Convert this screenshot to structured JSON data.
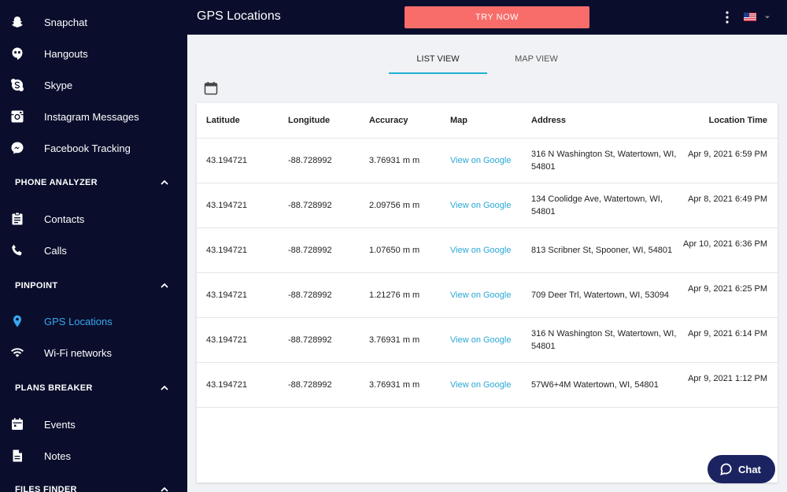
{
  "sidebar": {
    "top_items": [
      {
        "label": "Snapchat",
        "icon": "snapchat-icon"
      },
      {
        "label": "Hangouts",
        "icon": "hangouts-icon"
      },
      {
        "label": "Skype",
        "icon": "skype-icon"
      },
      {
        "label": "Instagram Messages",
        "icon": "instagram-icon"
      },
      {
        "label": "Facebook Tracking",
        "icon": "messenger-icon"
      }
    ],
    "phone_analyzer": {
      "title": "PHONE ANALYZER",
      "items": [
        {
          "label": "Contacts",
          "icon": "contacts-icon"
        },
        {
          "label": "Calls",
          "icon": "phone-icon"
        }
      ]
    },
    "pinpoint": {
      "title": "PINPOINT",
      "items": [
        {
          "label": "GPS Locations",
          "icon": "location-pin-icon",
          "active": true
        },
        {
          "label": "Wi-Fi networks",
          "icon": "wifi-icon"
        }
      ]
    },
    "plans_breaker": {
      "title": "PLANS BREAKER",
      "items": [
        {
          "label": "Events",
          "icon": "calendar-icon"
        },
        {
          "label": "Notes",
          "icon": "notes-icon"
        }
      ]
    },
    "files_finder": {
      "title": "FILES FINDER"
    }
  },
  "header": {
    "title": "GPS Locations",
    "try_now": "TRY NOW",
    "menu_icon": "kebab-menu-icon",
    "language_icon": "us-flag-icon"
  },
  "tabs": [
    {
      "label": "LIST VIEW",
      "active": true
    },
    {
      "label": "MAP VIEW",
      "active": false
    }
  ],
  "table": {
    "columns": [
      "Latitude",
      "Longitude",
      "Accuracy",
      "Map",
      "Address",
      "Location Time"
    ],
    "rows": [
      {
        "lat": "43.194721",
        "lng": "-88.728992",
        "accuracy": "3.76931 m m",
        "map": "View on Google",
        "address": "316 N Washington St, Watertown, WI, 54801",
        "time": "Apr 9, 2021 6:59 PM"
      },
      {
        "lat": "43.194721",
        "lng": "-88.728992",
        "accuracy": "2.09756 m m",
        "map": "View on Google",
        "address": "134 Coolidge Ave, Watertown, WI, 54801",
        "time": "Apr 8, 2021 6:49 PM"
      },
      {
        "lat": "43.194721",
        "lng": "-88.728992",
        "accuracy": "1.07650 m m",
        "map": "View on Google",
        "address": "813 Scribner St, Spooner, WI, 54801",
        "time": "Apr 10, 2021 6:36 PM"
      },
      {
        "lat": "43.194721",
        "lng": "-88.728992",
        "accuracy": "1.21276 m m",
        "map": "View on Google",
        "address": "709 Deer Trl, Watertown, WI, 53094",
        "time": "Apr 9, 2021 6:25 PM"
      },
      {
        "lat": "43.194721",
        "lng": "-88.728992",
        "accuracy": "3.76931 m m",
        "map": "View on Google",
        "address": "316 N Washington St, Watertown, WI, 54801",
        "time": "Apr 9, 2021 6:14 PM"
      },
      {
        "lat": "43.194721",
        "lng": "-88.728992",
        "accuracy": "3.76931 m m",
        "map": "View on Google",
        "address": "57W6+4M Watertown, WI, 54801",
        "time": "Apr 9, 2021 1:12 PM"
      }
    ]
  },
  "chat": {
    "label": "Chat"
  },
  "colors": {
    "sidebar_bg": "#0a0e2c",
    "accent": "#3aa7f0",
    "try_now": "#f86d6a",
    "link": "#2aa8d6",
    "chat_bg": "#1b2460"
  }
}
